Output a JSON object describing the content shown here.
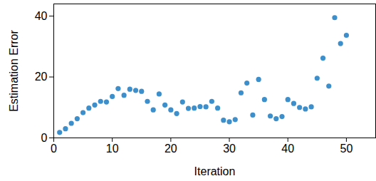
{
  "chart_data": {
    "type": "scatter",
    "x_label": "Iteration",
    "y_label": "Estimation Error",
    "x": [
      1,
      2,
      3,
      4,
      5,
      6,
      7,
      8,
      9,
      10,
      11,
      12,
      13,
      14,
      15,
      16,
      17,
      18,
      19,
      20,
      21,
      22,
      23,
      24,
      25,
      26,
      27,
      28,
      29,
      30,
      31,
      32,
      33,
      34,
      35,
      36,
      37,
      38,
      39,
      40,
      41,
      42,
      43,
      44,
      45,
      46,
      47,
      48,
      49,
      50
    ],
    "values": [
      1.8,
      3,
      4.8,
      6.3,
      8.3,
      9.8,
      10.8,
      12,
      11.8,
      13.6,
      16.2,
      14,
      16,
      15.6,
      15.3,
      12,
      9.2,
      14.4,
      10.8,
      9.2,
      8,
      11.8,
      9.7,
      9.8,
      10.3,
      10.2,
      12,
      9.8,
      5.8,
      5.3,
      6,
      14.8,
      18,
      7.5,
      19.2,
      12.6,
      7.2,
      6.3,
      7,
      12.6,
      11.3,
      10,
      9.5,
      10.2,
      19.6,
      26.2,
      17,
      39.5,
      31,
      33.7
    ],
    "color": "#3d8fcc",
    "marker": "circle",
    "xlim": [
      0,
      55
    ],
    "xticks": [
      0,
      10,
      20,
      30,
      40,
      50
    ],
    "ylim": [
      0,
      44
    ],
    "yticks": [
      0,
      20,
      40
    ],
    "grid": false
  }
}
